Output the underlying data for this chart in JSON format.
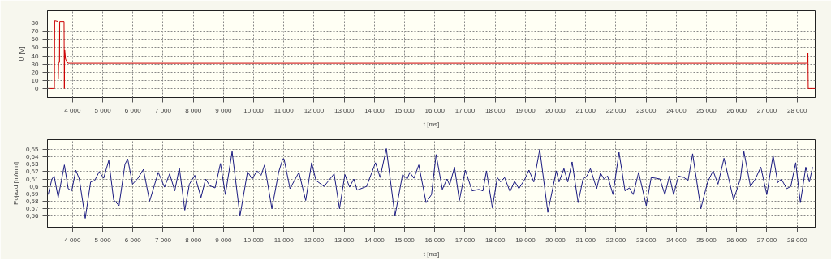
{
  "chart_data": [
    {
      "type": "line",
      "xlabel": "t [ms]",
      "ylabel": "U [V]",
      "grid": true,
      "xlim": [
        3170,
        28600
      ],
      "ylim": [
        -11,
        96
      ],
      "xticks": [
        {
          "value": 4000,
          "label": "4 000"
        },
        {
          "value": 5000,
          "label": "5 000"
        },
        {
          "value": 6000,
          "label": "6 000"
        },
        {
          "value": 7000,
          "label": "7 000"
        },
        {
          "value": 8000,
          "label": "8 000"
        },
        {
          "value": 9000,
          "label": "9 000"
        },
        {
          "value": 10000,
          "label": "10 000"
        },
        {
          "value": 11000,
          "label": "11 000"
        },
        {
          "value": 12000,
          "label": "12 000"
        },
        {
          "value": 13000,
          "label": "13 000"
        },
        {
          "value": 14000,
          "label": "14 000"
        },
        {
          "value": 15000,
          "label": "15 000"
        },
        {
          "value": 16000,
          "label": "16 000"
        },
        {
          "value": 17000,
          "label": "17 000"
        },
        {
          "value": 18000,
          "label": "18 000"
        },
        {
          "value": 19000,
          "label": "19 000"
        },
        {
          "value": 20000,
          "label": "20 000"
        },
        {
          "value": 21000,
          "label": "21 000"
        },
        {
          "value": 22000,
          "label": "22 000"
        },
        {
          "value": 23000,
          "label": "23 000"
        },
        {
          "value": 24000,
          "label": "24 000"
        },
        {
          "value": 25000,
          "label": "25 000"
        },
        {
          "value": 26000,
          "label": "26 000"
        },
        {
          "value": 27000,
          "label": "27 000"
        },
        {
          "value": 28000,
          "label": "28 000"
        }
      ],
      "yticks": [
        0,
        10,
        20,
        30,
        40,
        50,
        60,
        70,
        80
      ],
      "series": [
        {
          "color": "#cc0000",
          "x": [
            3170,
            3400,
            3410,
            3520,
            3525,
            3540,
            3570,
            3575,
            3720,
            3730,
            3740,
            3770,
            3850,
            28300,
            28350,
            28360,
            28370,
            28600
          ],
          "values": [
            0,
            0,
            83,
            82,
            12,
            33,
            32,
            82,
            82,
            0,
            47,
            36,
            31,
            31,
            32,
            43,
            0,
            0
          ]
        }
      ]
    },
    {
      "type": "line",
      "xlabel": "t [ms]",
      "ylabel": "Pojazd [m/min]",
      "grid": true,
      "xlim": [
        3170,
        28600
      ],
      "ylim": [
        0.545,
        0.663
      ],
      "xticks": [
        {
          "value": 4000,
          "label": "4 000"
        },
        {
          "value": 5000,
          "label": "5 000"
        },
        {
          "value": 6000,
          "label": "6 000"
        },
        {
          "value": 7000,
          "label": "7 000"
        },
        {
          "value": 8000,
          "label": "8 000"
        },
        {
          "value": 9000,
          "label": "9 000"
        },
        {
          "value": 10000,
          "label": "10 000"
        },
        {
          "value": 11000,
          "label": "11 000"
        },
        {
          "value": 12000,
          "label": "12 000"
        },
        {
          "value": 13000,
          "label": "13 000"
        },
        {
          "value": 14000,
          "label": "14 000"
        },
        {
          "value": 15000,
          "label": "15 000"
        },
        {
          "value": 16000,
          "label": "16 000"
        },
        {
          "value": 17000,
          "label": "17 000"
        },
        {
          "value": 18000,
          "label": "18 000"
        },
        {
          "value": 19000,
          "label": "19 000"
        },
        {
          "value": 20000,
          "label": "20 000"
        },
        {
          "value": 21000,
          "label": "21 000"
        },
        {
          "value": 22000,
          "label": "22 000"
        },
        {
          "value": 23000,
          "label": "23 000"
        },
        {
          "value": 24000,
          "label": "24 000"
        },
        {
          "value": 25000,
          "label": "25 000"
        },
        {
          "value": 26000,
          "label": "26 000"
        },
        {
          "value": 27000,
          "label": "27 000"
        },
        {
          "value": 28000,
          "label": "28 000"
        }
      ],
      "yticks": [
        {
          "value": 0.56,
          "label": "0,56"
        },
        {
          "value": 0.57,
          "label": "0,57"
        },
        {
          "value": 0.58,
          "label": "0,58"
        },
        {
          "value": 0.59,
          "label": "0,59"
        },
        {
          "value": 0.6,
          "label": "0,6"
        },
        {
          "value": 0.61,
          "label": "0,61"
        },
        {
          "value": 0.62,
          "label": "0,62"
        },
        {
          "value": 0.63,
          "label": "0,63"
        },
        {
          "value": 0.64,
          "label": "0,64"
        },
        {
          "value": 0.65,
          "label": "0,65"
        }
      ],
      "series": [
        {
          "color": "#1a1a80",
          "x": [
            3194,
            3319,
            3391,
            3525,
            3731,
            3857,
            3973,
            4108,
            4224,
            4421,
            4600,
            4735,
            4887,
            5030,
            5201,
            5362,
            5541,
            5738,
            5828,
            5989,
            6168,
            6348,
            6554,
            6841,
            7047,
            7217,
            7387,
            7540,
            7719,
            7871,
            8050,
            8256,
            8409,
            8543,
            8722,
            8901,
            9063,
            9287,
            9547,
            9798,
            9950,
            10111,
            10246,
            10362,
            10604,
            10828,
            10962,
            11007,
            11204,
            11500,
            11724,
            11921,
            12064,
            12333,
            12665,
            12844,
            13023,
            13176,
            13319,
            13427,
            13741,
            14036,
            14189,
            14395,
            14681,
            14932,
            15084,
            15174,
            15309,
            15470,
            15712,
            15891,
            16044,
            16250,
            16402,
            16492,
            16653,
            16814,
            17011,
            17236,
            17460,
            17594,
            17711,
            17908,
            18069,
            18177,
            18311,
            18491,
            18643,
            18786,
            18984,
            19118,
            19279,
            19476,
            19745,
            20024,
            20115,
            20277,
            20404,
            20548,
            20747,
            20910,
            21036,
            21154,
            21361,
            21488,
            21605,
            21723,
            21903,
            22102,
            22301,
            22445,
            22572,
            22752,
            23005,
            23168,
            23322,
            23458,
            23620,
            23773,
            23909,
            24071,
            24252,
            24388,
            24541,
            24812,
            25038,
            25218,
            25381,
            25580,
            25896,
            26122,
            26239,
            26456,
            26618,
            26799,
            26998,
            27206,
            27359,
            27477,
            27657,
            27793,
            27955,
            28109,
            28289,
            28407,
            28515
          ],
          "values": [
            0.589,
            0.61,
            0.614,
            0.585,
            0.629,
            0.597,
            0.594,
            0.622,
            0.61,
            0.557,
            0.606,
            0.608,
            0.62,
            0.611,
            0.635,
            0.582,
            0.574,
            0.63,
            0.637,
            0.603,
            0.611,
            0.623,
            0.58,
            0.619,
            0.599,
            0.617,
            0.594,
            0.625,
            0.568,
            0.603,
            0.615,
            0.585,
            0.61,
            0.601,
            0.598,
            0.631,
            0.589,
            0.647,
            0.56,
            0.62,
            0.61,
            0.621,
            0.615,
            0.629,
            0.57,
            0.619,
            0.637,
            0.637,
            0.597,
            0.619,
            0.581,
            0.632,
            0.608,
            0.6,
            0.617,
            0.57,
            0.616,
            0.599,
            0.61,
            0.595,
            0.6,
            0.632,
            0.612,
            0.651,
            0.56,
            0.616,
            0.61,
            0.619,
            0.611,
            0.629,
            0.578,
            0.589,
            0.643,
            0.596,
            0.61,
            0.602,
            0.626,
            0.581,
            0.622,
            0.594,
            0.596,
            0.594,
            0.621,
            0.571,
            0.612,
            0.606,
            0.612,
            0.593,
            0.607,
            0.597,
            0.61,
            0.622,
            0.606,
            0.65,
            0.565,
            0.621,
            0.606,
            0.624,
            0.606,
            0.633,
            0.578,
            0.61,
            0.614,
            0.624,
            0.597,
            0.618,
            0.61,
            0.614,
            0.589,
            0.646,
            0.594,
            0.598,
            0.589,
            0.619,
            0.574,
            0.612,
            0.611,
            0.61,
            0.589,
            0.614,
            0.589,
            0.614,
            0.612,
            0.608,
            0.644,
            0.57,
            0.606,
            0.621,
            0.603,
            0.638,
            0.582,
            0.61,
            0.647,
            0.6,
            0.61,
            0.626,
            0.589,
            0.642,
            0.605,
            0.61,
            0.597,
            0.6,
            0.632,
            0.578,
            0.626,
            0.606,
            0.626
          ]
        }
      ]
    }
  ]
}
